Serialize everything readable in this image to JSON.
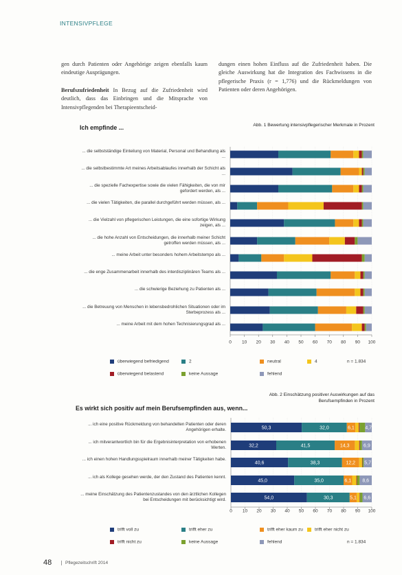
{
  "header": {
    "section": "INTENSIVPFLEGE"
  },
  "body": {
    "left_1": "gen durch Patienten oder Angehörige zeigen ebenfalls kaum eindeutige Ausprägungen.",
    "left_2_lead": "Berufszufriedenheit",
    "left_2": "In Bezug auf die Zufriedenheit wird deutlich, dass das Einbringen und die Mitsprache von Intensivpflegenden bei Therapieentscheid-",
    "right_1": "dungen einen hohen Einfluss auf die Zufriedenheit haben. Die gleiche Auswirkung hat die Integration des Fachwissens in die pflegerische Praxis (r = 1,776) und die Rückmeldungen von Patienten oder deren Angehörigen."
  },
  "footer": {
    "page": "48",
    "journal": "Pflegezeitschrift 2014"
  },
  "chart_data": [
    {
      "type": "bar",
      "orientation": "horizontal",
      "stacked": true,
      "title": "Ich empfinde ...",
      "caption": "Abb. 1 Bewertung intensivpflegerischer Merkmale in Prozent",
      "note": "n = 1.834",
      "categories": [
        "... die selbstständige Einteilung von Material, Personal und Behandlung als ...",
        "... die selbstbestimmte Art meines Arbeitsablaufes innerhalb der Schicht als ...",
        "... die spezielle Fachexpertise sowie die vielen Fähigkeiten, die von mir gefordert werden, als ...",
        "... die vielen Tätigkeiten, die parallel durchgeführt werden müssen, als ...",
        "... die Vielzahl von pflegerischen Leistungen, die eine sofortige Wirkung zeigen, als ...",
        "... die hohe Anzahl von Entscheidungen, die innerhalb meiner Schicht getroffen werden müssen, als ...",
        "... meine Arbeit unter besonders hohem Arbeitstempo als ...",
        "... die enge Zusammenarbeit innerhalb des interdisziplinären Teams als ...",
        "... die schwierige Beziehung zu Patienten als ...",
        "... die Betreuung von Menschen in lebensbedrohlichen Situationen oder im Sterbeprozess als ...",
        "... meine Arbeit mit dem hohen Technisierungsgrad als ..."
      ],
      "series": [
        {
          "name": "überwiegend befriedigend",
          "color": "#1f3d7a",
          "values": [
            34,
            44,
            34,
            5,
            38,
            19,
            6,
            33,
            27,
            28,
            23
          ]
        },
        {
          "name": "2",
          "color": "#2a7f86",
          "values": [
            37,
            34,
            38,
            14,
            36,
            27,
            16,
            38,
            34,
            34,
            37
          ]
        },
        {
          "name": "neutral",
          "color": "#ef8f1f",
          "values": [
            16,
            13,
            15,
            22,
            13,
            24,
            16,
            17,
            27,
            20,
            26
          ]
        },
        {
          "name": "4",
          "color": "#f4c51c",
          "values": [
            4,
            2,
            4,
            25,
            4,
            11,
            20,
            4,
            4,
            7,
            7
          ]
        },
        {
          "name": "überwiegend belastend",
          "color": "#a11c24",
          "values": [
            2,
            1,
            2,
            27,
            2,
            7,
            35,
            2,
            2,
            5,
            2
          ]
        },
        {
          "name": "keine Aussage",
          "color": "#7ba12f",
          "values": [
            1,
            1,
            1,
            1,
            1,
            2,
            2,
            1,
            1,
            1,
            1
          ]
        },
        {
          "name": "fehlend",
          "color": "#8e98b8",
          "values": [
            6,
            5,
            6,
            6,
            6,
            10,
            5,
            5,
            5,
            5,
            4
          ]
        }
      ],
      "xlim": [
        0,
        100
      ],
      "xticks": [
        0,
        10,
        20,
        30,
        40,
        50,
        60,
        70,
        80,
        90,
        100
      ],
      "grid": true
    },
    {
      "type": "bar",
      "orientation": "horizontal",
      "stacked": true,
      "title": "Es wirkt sich positiv auf mein Berufsempfinden aus, wenn...",
      "caption": "Abb. 2 Einschätzung positiver Auswirkungen auf das Berufsempfinden in Prozent",
      "note": "n = 1.834",
      "categories": [
        "... ich eine positive Rückmeldung von behandelten Patienten oder deren Angehörigen erhalte.",
        "... ich mitverantwortlich bin für die Ergebnisinterpretation von erhobenen Werten.",
        "... ich einen hohen Handlungsspielraum innerhalb meiner Tätigkeiten habe.",
        "... ich als Kollege gesehen werde, der den Zustand des Patienten kennt.",
        "... meine Einschätzung des Patientenzustandes von den ärztlichen Kollegen bei Entscheidungen mit berücksichtigt wird."
      ],
      "series": [
        {
          "name": "trifft voll zu",
          "color": "#1f3d7a",
          "values": [
            50.3,
            32.2,
            40.6,
            45.0,
            54.0
          ],
          "value_labels": [
            "50,3",
            "32,2",
            "40,6",
            "45,0",
            "54,0"
          ]
        },
        {
          "name": "trifft eher zu",
          "color": "#2a7f86",
          "values": [
            32.0,
            41.5,
            38.3,
            35.0,
            30.3
          ],
          "value_labels": [
            "32,0",
            "41,5",
            "38,3",
            "35,0",
            "30,3"
          ]
        },
        {
          "name": "trifft eher kaum zu",
          "color": "#ef8f1f",
          "values": [
            6.1,
            14.3,
            12.2,
            6.1,
            5.1
          ],
          "value_labels": [
            "6,1",
            "14,3",
            "12,2",
            "6,1",
            "5,1"
          ]
        },
        {
          "name": "trifft eher nicht zu",
          "color": "#f4c51c",
          "values": [
            2.4,
            3.1,
            2.0,
            3.0,
            1.9
          ],
          "value_labels": [
            null,
            null,
            null,
            null,
            null
          ]
        },
        {
          "name": "trifft nicht zu",
          "color": "#a11c24",
          "values": [
            0.5,
            0.5,
            0.3,
            0.4,
            0.3
          ],
          "value_labels": [
            null,
            null,
            null,
            null,
            null
          ]
        },
        {
          "name": "keine Aussage",
          "color": "#7ba12f",
          "values": [
            4.0,
            1.5,
            0.9,
            1.9,
            1.8
          ],
          "value_labels": [
            null,
            null,
            null,
            null,
            null
          ]
        },
        {
          "name": "fehlend",
          "color": "#8e98b8",
          "values": [
            4.7,
            6.9,
            5.7,
            8.6,
            6.6
          ],
          "value_labels": [
            "4,7",
            "6,9",
            "5,7",
            "8,6",
            "6,6"
          ]
        }
      ],
      "xlim": [
        0,
        100
      ],
      "xticks": [
        0,
        10,
        20,
        30,
        40,
        50,
        60,
        70,
        80,
        90,
        100
      ],
      "grid": true
    }
  ]
}
